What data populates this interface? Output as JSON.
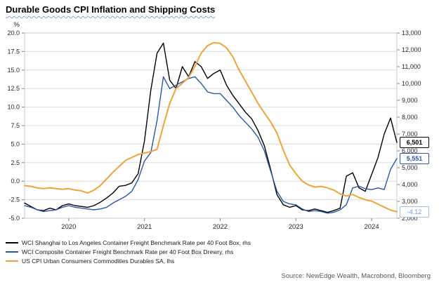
{
  "title": "Durable Goods CPI Inflation and Shipping Costs",
  "source_note": "Source: NewEdge Wealth, Macrobond, Bloomberg",
  "colors": {
    "black_series": "#000000",
    "blue_series": "#2458a8",
    "orange_series": "#f0a339",
    "grid": "#dcdcdc",
    "axis_text": "#262626",
    "end_label_light_blue": "#9dc3e6"
  },
  "chart_data": {
    "type": "line",
    "title": "Durable Goods CPI Inflation and Shipping Costs",
    "frequency": "monthly",
    "start": "2019-06",
    "grid": "horizontal",
    "legend_position": "bottom-left",
    "x_tick_labels": [
      "2020",
      "2021",
      "2022",
      "2023",
      "2024"
    ],
    "left_axis": {
      "unit": "%",
      "min": -5,
      "max": 20,
      "ticks": [
        20,
        17.5,
        15,
        12.5,
        10,
        7.5,
        5,
        2.5,
        0,
        -2.5,
        -5
      ],
      "tick_labels": [
        "20.0",
        "17.5",
        "15.0",
        "12.5",
        "10.0",
        "7.5",
        "5.0",
        "2.5",
        "0.0",
        "-2.5",
        "-5.0"
      ]
    },
    "right_axis": {
      "min": 2000,
      "max": 13000,
      "ticks": [
        13000,
        12000,
        11000,
        10000,
        9000,
        8000,
        7000,
        6000,
        5000,
        4000,
        3000,
        2000
      ],
      "tick_labels": [
        "13,000",
        "12,000",
        "11,000",
        "10,000",
        "9,000",
        "8,000",
        "7,000",
        "6,000",
        "5,000",
        "4,000",
        "3,000",
        "2,000"
      ]
    },
    "series": [
      {
        "name": "WCI Shanghai to Los Angeles Container Freight Benchmark Rate per 40 Foot Box, rhs",
        "axis": "right",
        "color": "#000000",
        "end_label": "6,501",
        "end_label_border": "#000000",
        "end_label_text": "#000000",
        "values": [
          2900,
          2700,
          2500,
          2450,
          2600,
          2500,
          2750,
          2850,
          2750,
          2700,
          2650,
          2750,
          2950,
          3200,
          3500,
          3900,
          3950,
          4100,
          4650,
          6600,
          9600,
          11800,
          12400,
          10200,
          9700,
          11000,
          10400,
          11300,
          11000,
          10300,
          10600,
          10800,
          9900,
          9300,
          8800,
          8300,
          7900,
          7200,
          6300,
          4900,
          3400,
          2800,
          2650,
          2750,
          2500,
          2450,
          2550,
          2450,
          2350,
          2450,
          2600,
          4500,
          4700,
          3800,
          3600,
          4600,
          5600,
          7000,
          7950,
          6501
        ]
      },
      {
        "name": "WCI Composite Container Freight Benchmark Rate per 40 Foot Box Drewry, rhs",
        "axis": "right",
        "color": "#2458a8",
        "end_label": "5,551",
        "end_label_border": "#2458a8",
        "end_label_text": "#2458a8",
        "values": [
          2750,
          2650,
          2500,
          2400,
          2450,
          2500,
          2650,
          2750,
          2650,
          2600,
          2550,
          2500,
          2550,
          2650,
          2900,
          3100,
          3300,
          3600,
          4300,
          5400,
          5900,
          7800,
          10400,
          9700,
          9900,
          10100,
          10300,
          10400,
          10000,
          9500,
          9400,
          9400,
          9000,
          8600,
          8100,
          7700,
          7300,
          6800,
          6000,
          4800,
          3600,
          3000,
          2850,
          2800,
          2550,
          2400,
          2450,
          2400,
          2300,
          2350,
          2500,
          2800,
          3800,
          3900,
          3750,
          3700,
          3800,
          3700,
          4900,
          5551
        ]
      },
      {
        "name": "US CPI Urban Consumers Commodities Durables SA, lhs",
        "axis": "left",
        "color": "#f0a339",
        "end_label": "-4.12",
        "end_label_border": "#9dc3e6",
        "end_label_text": "#6f9fd8",
        "values": [
          -0.6,
          -0.7,
          -0.9,
          -1.0,
          -0.9,
          -1.0,
          -1.1,
          -1.0,
          -1.2,
          -1.3,
          -1.6,
          -1.2,
          -0.6,
          0.3,
          1.2,
          2.0,
          2.8,
          3.2,
          3.6,
          3.8,
          4.0,
          4.3,
          7.5,
          10.5,
          12.5,
          13.2,
          14.0,
          15.5,
          17.3,
          18.3,
          18.7,
          18.6,
          18.0,
          16.8,
          15.0,
          13.5,
          12.0,
          10.5,
          9.2,
          8.0,
          6.5,
          4.2,
          2.2,
          1.0,
          0.0,
          -0.5,
          -0.8,
          -0.7,
          -0.9,
          -1.2,
          -1.7,
          -2.0,
          -1.8,
          -2.2,
          -2.5,
          -2.7,
          -3.1,
          -3.5,
          -3.9,
          -4.12
        ]
      }
    ]
  }
}
